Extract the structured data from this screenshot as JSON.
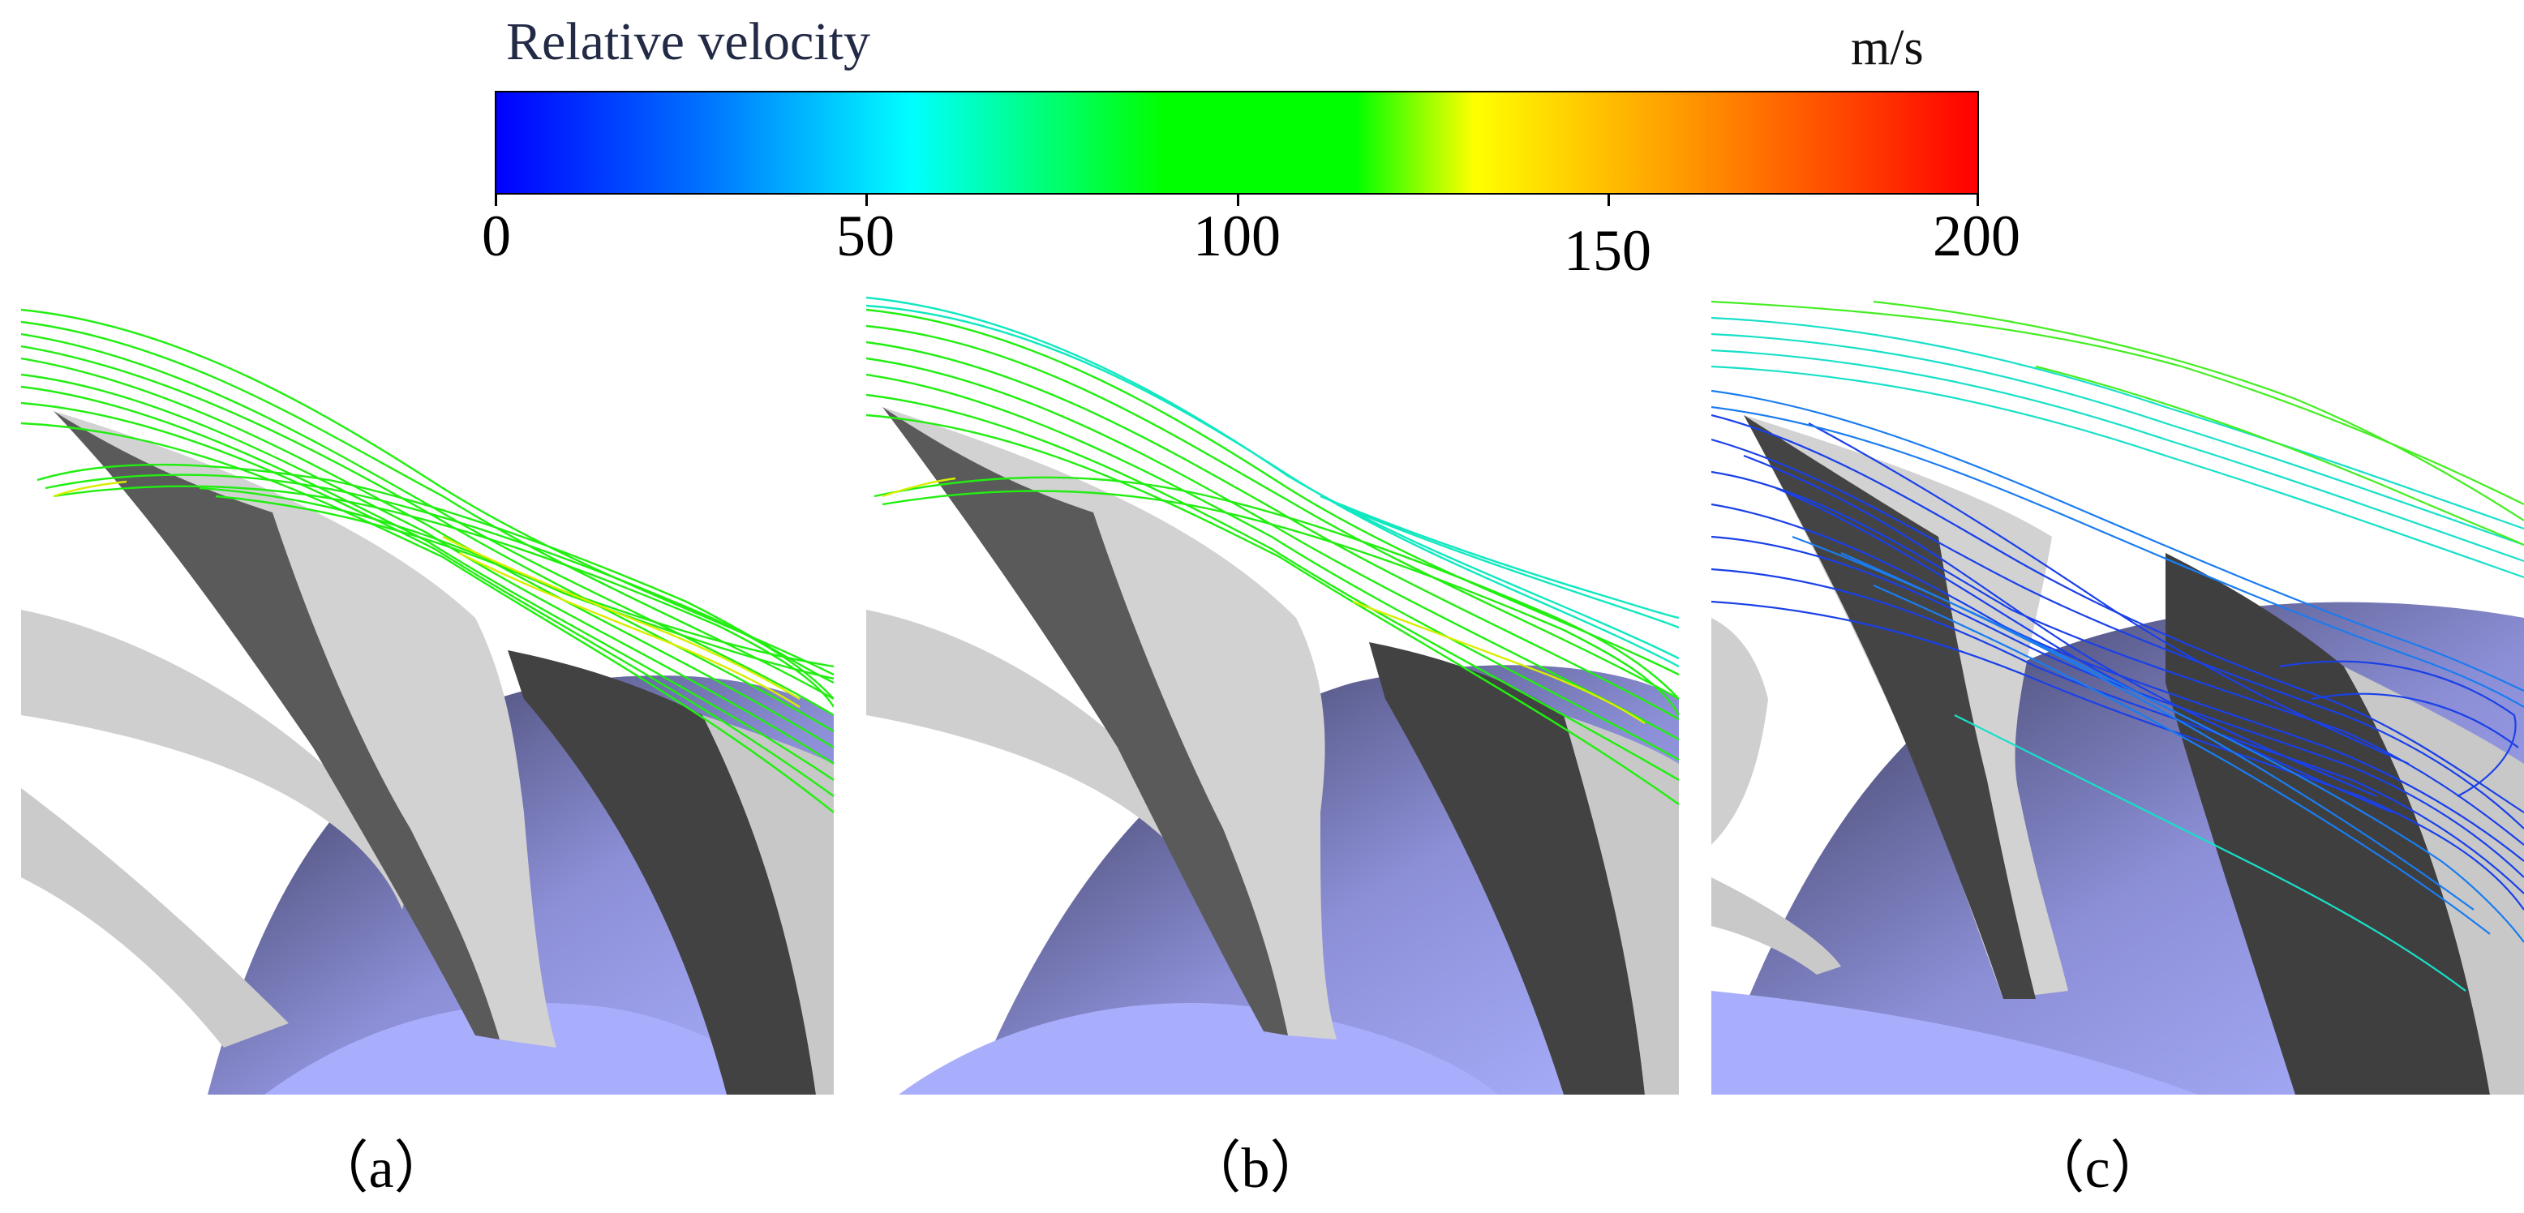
{
  "colorbar": {
    "title": "Relative velocity",
    "unit": "m/s",
    "ticks": [
      "0",
      "50",
      "100",
      "150",
      "200"
    ],
    "range": [
      0,
      200
    ],
    "colormap": [
      "#0000ff",
      "#0072ff",
      "#00ffff",
      "#00ff00",
      "#ffff00",
      "#ff8000",
      "#ff0000"
    ]
  },
  "panels": [
    {
      "label": "（a）",
      "streamline_color": "#22ee11",
      "secondary_color": "#d8ee00"
    },
    {
      "label": "（b）",
      "streamline_color": "#22ee11",
      "secondary_color": "#11e8c0"
    },
    {
      "label": "（c）",
      "streamline_color": "#1a7cf0",
      "secondary_color": "#18e0c8"
    }
  ]
}
